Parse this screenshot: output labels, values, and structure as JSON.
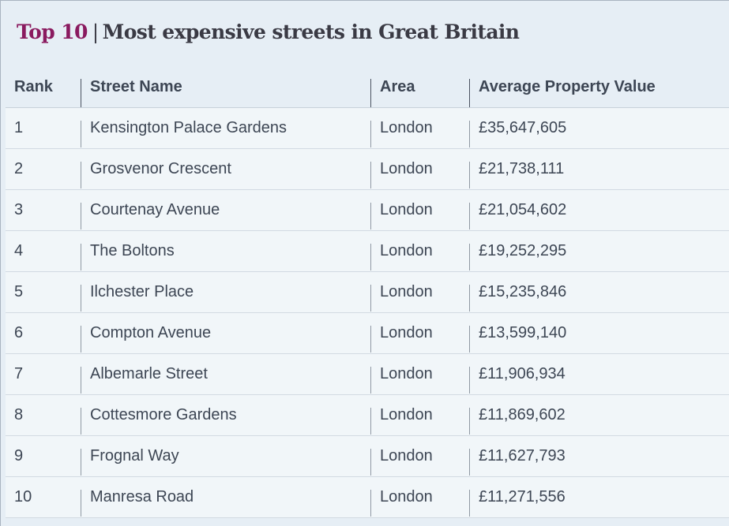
{
  "title": {
    "accent": "Top 10",
    "separator": "|",
    "main": "Most expensive streets in Great Britain"
  },
  "table": {
    "headers": {
      "rank": "Rank",
      "street": "Street Name",
      "area": "Area",
      "value": "Average Property Value"
    },
    "rows": [
      {
        "rank": "1",
        "street": "Kensington Palace Gardens",
        "area": "London",
        "value": "£35,647,605"
      },
      {
        "rank": "2",
        "street": "Grosvenor Crescent",
        "area": "London",
        "value": "£21,738,111"
      },
      {
        "rank": "3",
        "street": "Courtenay Avenue",
        "area": "London",
        "value": "£21,054,602"
      },
      {
        "rank": "4",
        "street": "The Boltons",
        "area": "London",
        "value": "£19,252,295"
      },
      {
        "rank": "5",
        "street": "Ilchester Place",
        "area": "London",
        "value": "£15,235,846"
      },
      {
        "rank": "6",
        "street": "Compton Avenue",
        "area": "London",
        "value": "£13,599,140"
      },
      {
        "rank": "7",
        "street": "Albemarle Street",
        "area": "London",
        "value": "£11,906,934"
      },
      {
        "rank": "8",
        "street": "Cottesmore Gardens",
        "area": "London",
        "value": "£11,869,602"
      },
      {
        "rank": "9",
        "street": "Frognal Way",
        "area": "London",
        "value": "£11,627,793"
      },
      {
        "rank": "10",
        "street": "Manresa Road",
        "area": "London",
        "value": "£11,271,556"
      }
    ]
  }
}
